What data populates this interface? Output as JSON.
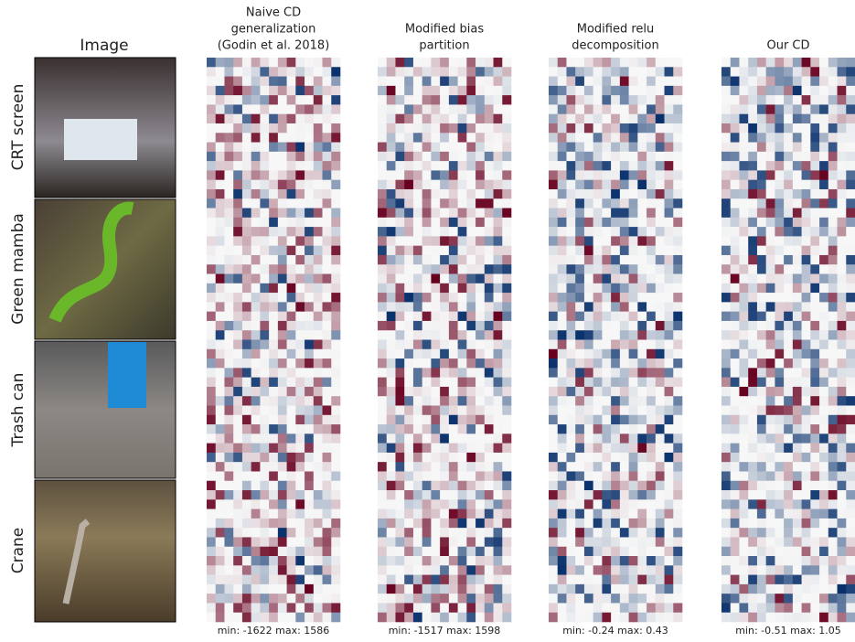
{
  "image_column": {
    "title": "Image"
  },
  "rows": [
    {
      "label": "CRT screen"
    },
    {
      "label": "Green mamba"
    },
    {
      "label": "Trash can"
    },
    {
      "label": "Crane"
    }
  ],
  "columns": [
    {
      "title_lines": [
        "Naive CD",
        "generalization",
        "(Godin et al. 2018)"
      ],
      "caption": "min: -1622 max: 1586"
    },
    {
      "title_lines": [
        "Modified bias",
        "partition"
      ],
      "caption": "min: -1517 max: 1598"
    },
    {
      "title_lines": [
        "Modified relu",
        "decomposition"
      ],
      "caption": "min: -0.24 max: 0.43"
    },
    {
      "title_lines": [
        "Our CD"
      ],
      "caption": "min: -0.51 max: 1.05"
    }
  ]
}
